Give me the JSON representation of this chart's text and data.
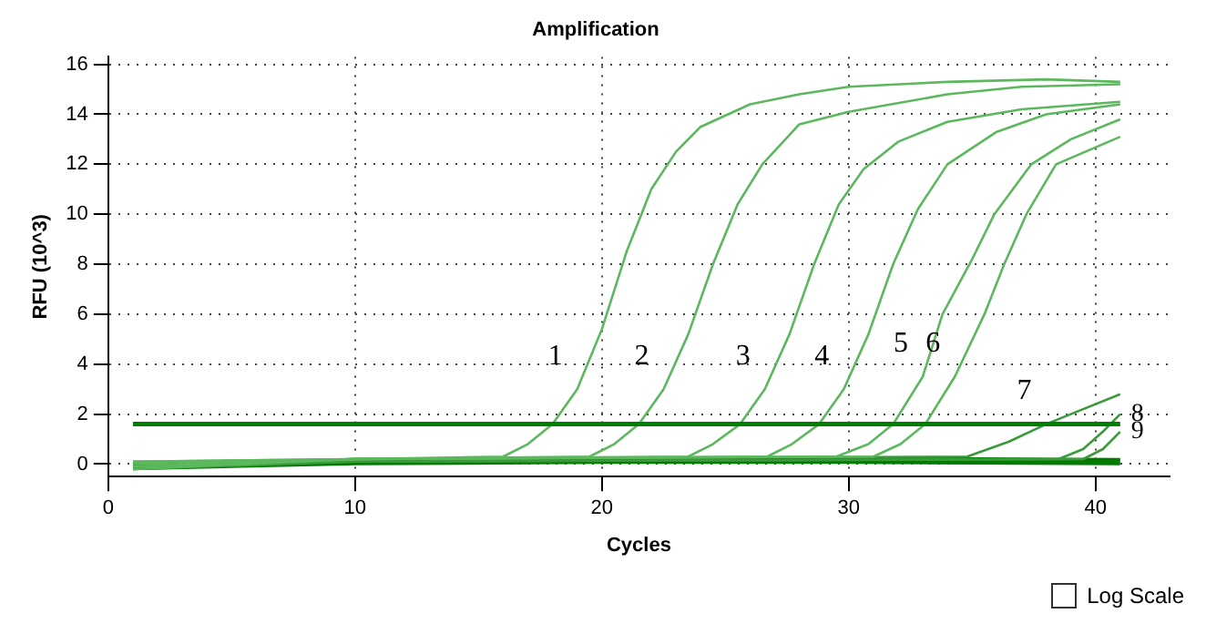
{
  "chart_data": {
    "type": "line",
    "title": "Amplification",
    "xlabel": "Cycles",
    "ylabel": "RFU (10^3)",
    "xlim": [
      0,
      43
    ],
    "ylim": [
      -0.5,
      16.3
    ],
    "xticks": [
      0,
      10,
      20,
      30,
      40
    ],
    "yticks": [
      0,
      2,
      4,
      6,
      8,
      10,
      12,
      14,
      16
    ],
    "grid": true,
    "legend": false,
    "marker": "none",
    "line_style": "solid",
    "ref_lines": [
      {
        "axis": "y",
        "value": 1.6,
        "color": "#008000"
      }
    ],
    "series": [
      {
        "color": "#5cb85c",
        "x": [
          1,
          10,
          16,
          17,
          18,
          19,
          20,
          21,
          22,
          23,
          24,
          26,
          28,
          30,
          34,
          38,
          41
        ],
        "values": [
          0.1,
          0.2,
          0.3,
          0.8,
          1.6,
          3,
          5.4,
          8.5,
          11,
          12.5,
          13.5,
          14.4,
          14.8,
          15.1,
          15.3,
          15.4,
          15.3
        ]
      },
      {
        "color": "#5cb85c",
        "x": [
          1,
          10,
          19.5,
          20.5,
          21.5,
          22.5,
          23.5,
          24.5,
          25.5,
          26.5,
          28,
          30,
          34,
          37,
          41
        ],
        "values": [
          -0.1,
          0.2,
          0.3,
          0.8,
          1.6,
          3,
          5.2,
          8,
          10.4,
          12,
          13.6,
          14.1,
          14.8,
          15.1,
          15.2
        ]
      },
      {
        "color": "#5cb85c",
        "x": [
          1,
          10,
          23.5,
          24.5,
          25.6,
          26.6,
          27.6,
          28.6,
          29.6,
          30.6,
          32,
          34,
          37,
          41
        ],
        "values": [
          0.0,
          0.2,
          0.3,
          0.8,
          1.6,
          3,
          5.2,
          8,
          10.4,
          11.8,
          12.9,
          13.7,
          14.2,
          14.5
        ]
      },
      {
        "color": "#5cb85c",
        "x": [
          1,
          10,
          26.7,
          27.7,
          28.8,
          29.8,
          30.8,
          31.8,
          32.8,
          34,
          36,
          38,
          41
        ],
        "values": [
          -0.2,
          0.2,
          0.3,
          0.8,
          1.6,
          3,
          5.2,
          8,
          10.2,
          12,
          13.3,
          14,
          14.4
        ]
      },
      {
        "color": "#5cb85c",
        "x": [
          1,
          10,
          29.5,
          30.8,
          31.8,
          33,
          33.8,
          35,
          35.9,
          37.4,
          39,
          41
        ],
        "values": [
          0.1,
          0.2,
          0.3,
          0.8,
          1.6,
          3.5,
          6,
          8.2,
          10,
          12,
          13,
          13.8
        ]
      },
      {
        "color": "#5cb85c",
        "x": [
          1,
          10,
          31,
          32.1,
          33.1,
          34.3,
          35.5,
          36.3,
          37.2,
          38.4,
          41
        ],
        "values": [
          -0.1,
          0.2,
          0.3,
          0.8,
          1.6,
          3.5,
          6,
          8,
          10,
          12,
          13.1
        ]
      },
      {
        "color": "#3a9a3a",
        "x": [
          1,
          10,
          34.8,
          36.5,
          38,
          39.5,
          41
        ],
        "values": [
          0.0,
          0.2,
          0.3,
          0.9,
          1.6,
          2.2,
          2.8
        ]
      },
      {
        "color": "#3a9a3a",
        "x": [
          1,
          10,
          38.5,
          39.5,
          40.3,
          41
        ],
        "values": [
          -0.1,
          0.1,
          0.2,
          0.6,
          1.3,
          2.0
        ]
      },
      {
        "color": "#3a9a3a",
        "x": [
          1,
          10,
          39.5,
          40.3,
          41
        ],
        "values": [
          -0.2,
          0.1,
          0.2,
          0.6,
          1.3
        ]
      },
      {
        "color": "#007a00",
        "x": [
          1,
          10,
          20,
          30,
          41
        ],
        "values": [
          -0.1,
          0.1,
          0.15,
          0.15,
          0.1
        ]
      }
    ],
    "annotations": [
      {
        "text": "1",
        "x": 19,
        "y": 3
      },
      {
        "text": "2",
        "x": 22.5,
        "y": 3
      },
      {
        "text": "3",
        "x": 26.6,
        "y": 3
      },
      {
        "text": "4",
        "x": 29.8,
        "y": 3
      },
      {
        "text": "5",
        "x": 33,
        "y": 3.5
      },
      {
        "text": "6",
        "x": 34.3,
        "y": 3.5
      },
      {
        "text": "7",
        "x": 38,
        "y": 1.6
      },
      {
        "text": "8",
        "x": 41,
        "y": 2.0
      },
      {
        "text": "9",
        "x": 41,
        "y": 1.3
      },
      "Log Scale"
    ]
  }
}
